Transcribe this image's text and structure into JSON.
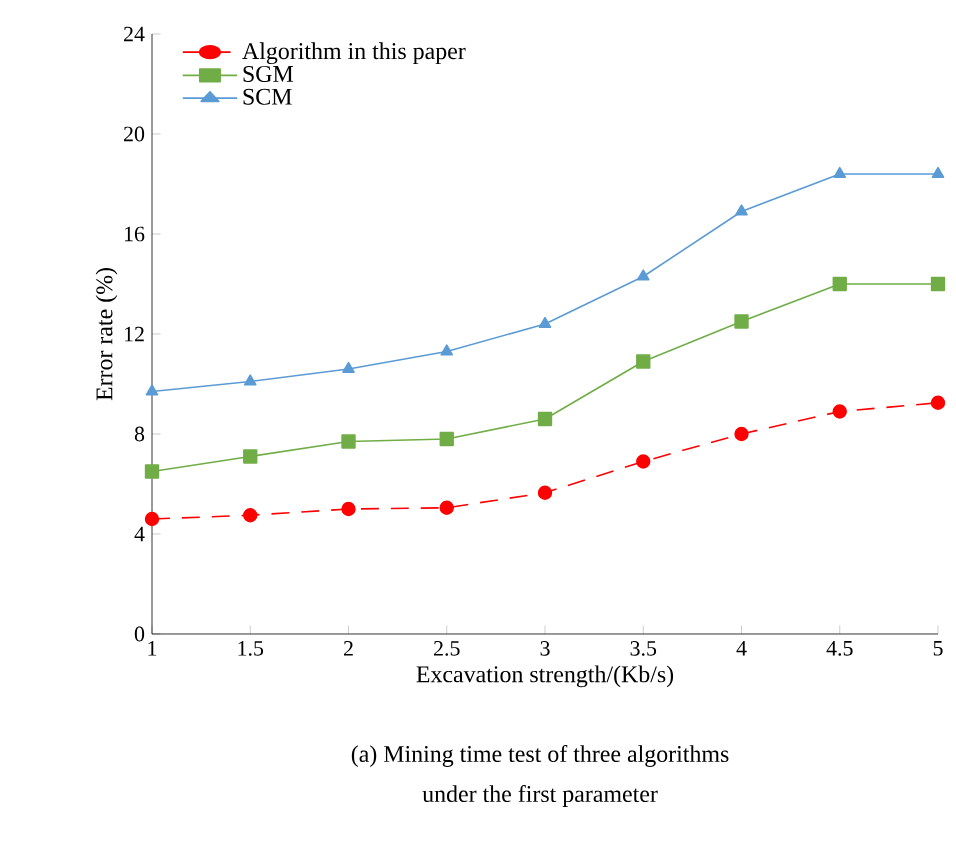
{
  "chart_data": {
    "type": "line",
    "xlabel": "Excavation strength/(Kb/s)",
    "ylabel": "Error rate (%)",
    "x": [
      1,
      1.5,
      2,
      2.5,
      3,
      3.5,
      4,
      4.5,
      5
    ],
    "series": [
      {
        "name": "Algorithm in this paper",
        "color": "#ff0000",
        "marker": "circle",
        "line_style": "dashed",
        "values": [
          4.6,
          4.75,
          5.0,
          5.05,
          5.65,
          6.9,
          8.0,
          8.9,
          9.25
        ]
      },
      {
        "name": "SGM",
        "color": "#70ad47",
        "marker": "square",
        "line_style": "solid",
        "values": [
          6.5,
          7.1,
          7.7,
          7.8,
          8.6,
          10.9,
          12.5,
          14.0,
          14.0
        ]
      },
      {
        "name": "SCM",
        "color": "#5b9bd5",
        "marker": "triangle",
        "line_style": "solid",
        "values": [
          9.7,
          10.1,
          10.6,
          11.3,
          12.4,
          14.3,
          16.9,
          18.4,
          18.4
        ]
      }
    ],
    "xlim": [
      1,
      5
    ],
    "xticks": [
      1,
      1.5,
      2,
      2.5,
      3,
      3.5,
      4,
      4.5,
      5
    ],
    "ylim": [
      0,
      24
    ],
    "yticks": [
      0,
      4,
      8,
      12,
      16,
      20,
      24
    ],
    "grid": false,
    "legend": "top left",
    "annotations": [
      "(a)  Mining time test of three algorithms",
      "under the first parameter"
    ]
  }
}
